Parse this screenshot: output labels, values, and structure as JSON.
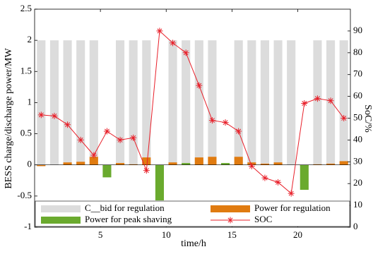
{
  "chart_data": {
    "type": "bar-line",
    "xlabel": "time/h",
    "ylabel": "BESS charge/discharge power/MW",
    "y2label": "SoC/%",
    "x": [
      0.5,
      1.5,
      2.5,
      3.5,
      4.5,
      5.5,
      6.5,
      7.5,
      8.5,
      9.5,
      10.5,
      11.5,
      12.5,
      13.5,
      14.5,
      15.5,
      16.5,
      17.5,
      18.5,
      19.5,
      20.5,
      21.5,
      22.5,
      23.5
    ],
    "xlim": [
      0,
      24
    ],
    "xticks": [
      5,
      10,
      15,
      20
    ],
    "ylim": [
      -1,
      2.5
    ],
    "yticks": [
      -1,
      -0.5,
      0,
      0.5,
      1,
      1.5,
      2,
      2.5
    ],
    "y2lim": [
      0,
      100
    ],
    "y2ticks": [
      0,
      10,
      20,
      30,
      40,
      50,
      60,
      70,
      80,
      90
    ],
    "series": [
      {
        "name": "C__bid for regulation",
        "kind": "bar",
        "color": "#dcdcdc",
        "values": [
          2,
          2,
          2,
          2,
          2,
          null,
          2,
          2,
          2,
          null,
          2,
          2,
          2,
          2,
          null,
          2,
          2,
          2,
          2,
          2,
          null,
          2,
          2,
          2
        ]
      },
      {
        "name": "Power for regulation",
        "kind": "bar",
        "color": "#e07b10",
        "values": [
          -0.02,
          0,
          0.04,
          0.05,
          0.13,
          0,
          0.03,
          0.01,
          0.12,
          0,
          0.04,
          0,
          0.12,
          0.13,
          0,
          0.13,
          0.04,
          0.02,
          0.04,
          0,
          -0.02,
          0.01,
          0.02,
          0.06
        ]
      },
      {
        "name": "Power for peak shaving",
        "kind": "bar",
        "color": "#6aaa2e",
        "values": [
          null,
          null,
          null,
          null,
          null,
          -0.2,
          null,
          null,
          null,
          -0.57,
          null,
          0.03,
          null,
          null,
          0.03,
          null,
          null,
          null,
          null,
          null,
          -0.4,
          null,
          null,
          null
        ]
      },
      {
        "name": "SOC",
        "kind": "line",
        "axis": "y2",
        "color": "#e8202a",
        "values": [
          51.5,
          51,
          47,
          40,
          33,
          44,
          40,
          41,
          26,
          90,
          84.5,
          80,
          65,
          49,
          48,
          44,
          28,
          22.6,
          20.6,
          15.5,
          56.8,
          59,
          58,
          50
        ]
      }
    ]
  }
}
